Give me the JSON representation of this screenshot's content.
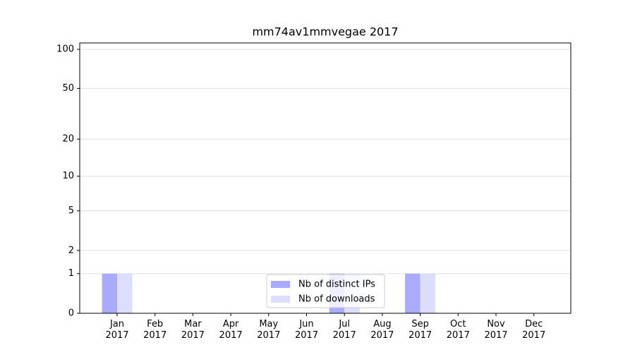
{
  "chart_data": {
    "type": "bar",
    "title": "mm74av1mmvegae 2017",
    "categories": [
      "Jan\n2017",
      "Feb\n2017",
      "Mar\n2017",
      "Apr\n2017",
      "May\n2017",
      "Jun\n2017",
      "Jul\n2017",
      "Aug\n2017",
      "Sep\n2017",
      "Oct\n2017",
      "Nov\n2017",
      "Dec\n2017"
    ],
    "series": [
      {
        "name": "Nb of distinct IPs",
        "color": "#aaaaff",
        "values": [
          1,
          0,
          0,
          0,
          0,
          0,
          1,
          0,
          1,
          0,
          0,
          0
        ]
      },
      {
        "name": "Nb of downloads",
        "color": "#ddddff",
        "values": [
          1,
          0,
          0,
          0,
          0,
          0,
          1,
          0,
          1,
          0,
          0,
          0
        ]
      }
    ],
    "yscale": "log1p",
    "ylim": [
      0,
      112
    ],
    "yticks": [
      0,
      1,
      2,
      5,
      10,
      20,
      50,
      100
    ],
    "grid": true,
    "legend": "lower center"
  }
}
